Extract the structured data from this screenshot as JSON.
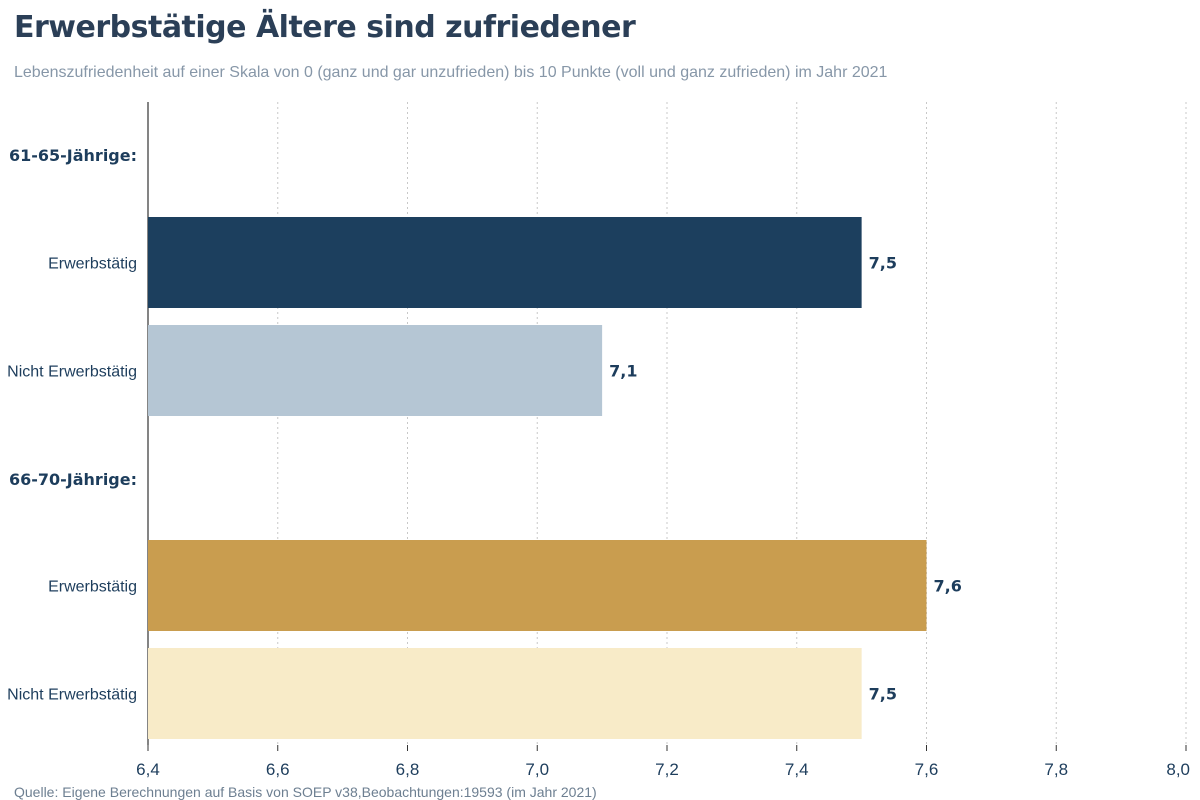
{
  "header": {
    "title": "Erwerbstätige Ältere sind zufriedener",
    "subtitle": "Lebenszufriedenheit auf einer Skala von 0 (ganz und gar unzufrieden) bis 10 Punkte (voll und ganz zufrieden) im Jahr 2021"
  },
  "footer": {
    "source": "Quelle: Eigene Berechnungen auf Basis von SOEP v38,Beobachtungen:19593 (im Jahr 2021)"
  },
  "colors": {
    "text_dark": "#1d3d5c",
    "axis": "#333333",
    "grid": "#c8c8c8"
  },
  "chart_data": {
    "type": "bar",
    "orientation": "horizontal",
    "xlim": [
      6.4,
      8.0
    ],
    "xticks": [
      "6,4",
      "6,6",
      "6,8",
      "7,0",
      "7,2",
      "7,4",
      "7,6",
      "7,8",
      "8,0"
    ],
    "grid": true,
    "groups": [
      {
        "label": "61-65-Jährige:",
        "bars": [
          {
            "category": "Erwerbstätig",
            "value": 7.5,
            "value_label": "7,5",
            "color": "#1c3f5e"
          },
          {
            "category": "Nicht Erwerbstätig",
            "value": 7.1,
            "value_label": "7,1",
            "color": "#b5c6d4"
          }
        ]
      },
      {
        "label": "66-70-Jährige:",
        "bars": [
          {
            "category": "Erwerbstätig",
            "value": 7.6,
            "value_label": "7,6",
            "color": "#c99d4f"
          },
          {
            "category": "Nicht Erwerbstätig",
            "value": 7.5,
            "value_label": "7,5",
            "color": "#f8ebc8"
          }
        ]
      }
    ]
  }
}
